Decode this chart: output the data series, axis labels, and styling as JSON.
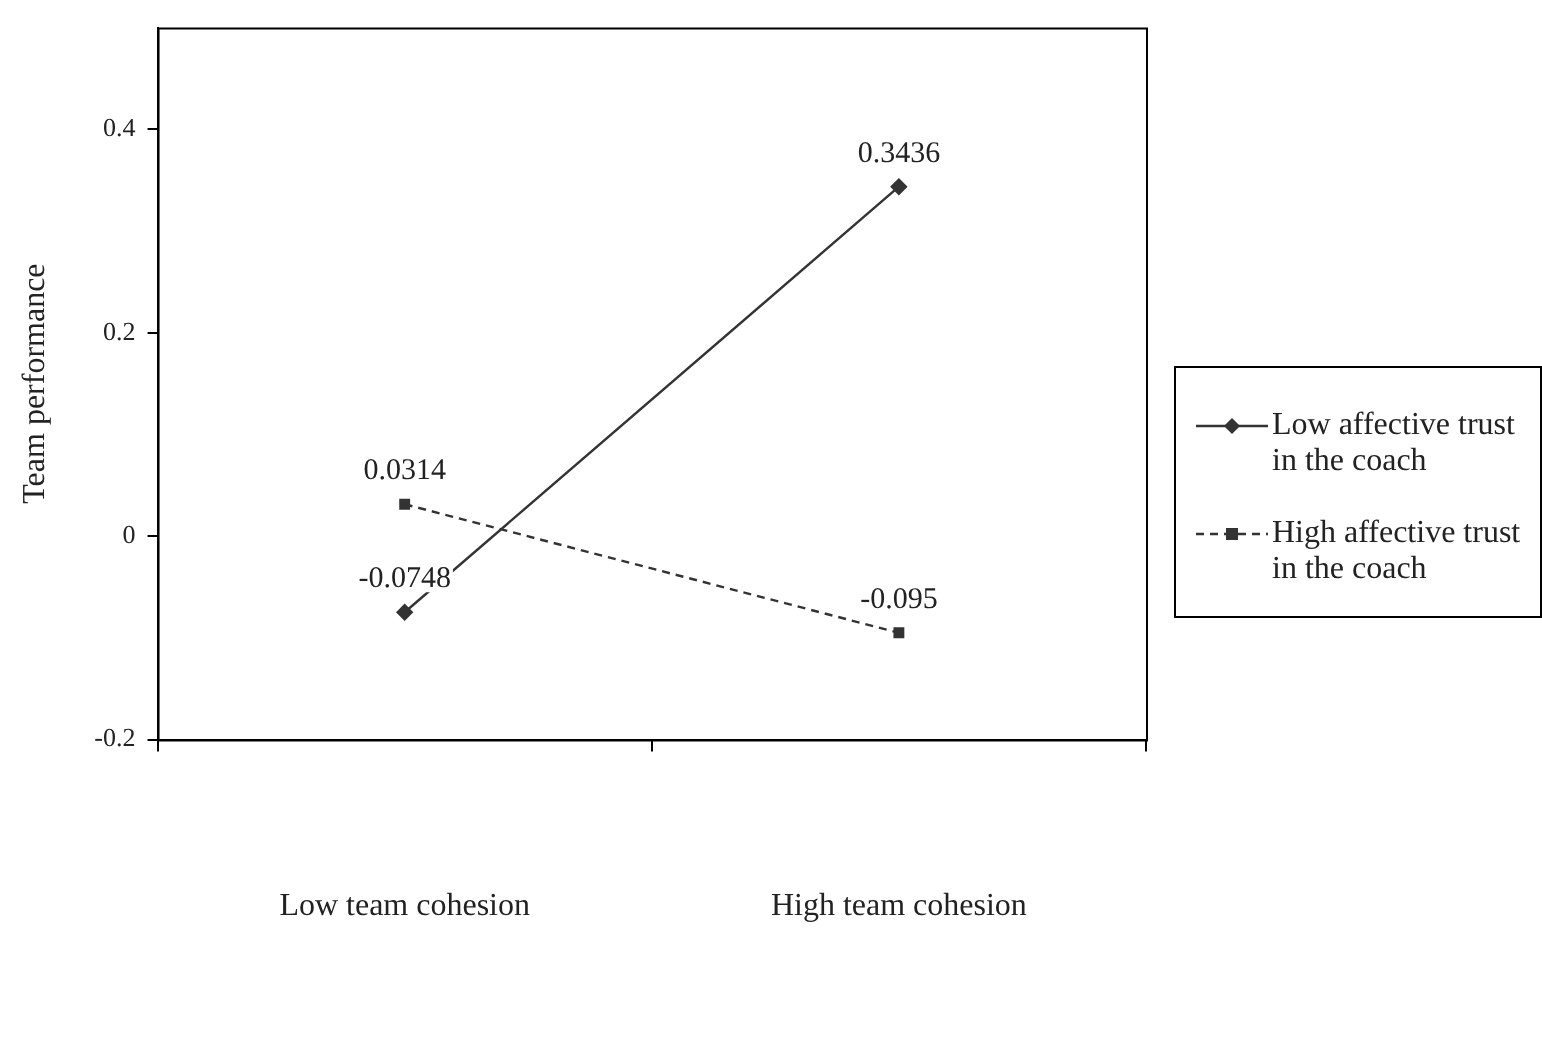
{
  "chart_data": {
    "type": "line",
    "ylabel": "Team performance",
    "categories": [
      "Low team cohesion",
      "High team cohesion"
    ],
    "series": [
      {
        "name": "Low affective trust in the coach",
        "color": "#333333",
        "values": [
          -0.0748,
          0.3436
        ],
        "marker": "diamond",
        "line_style": "solid"
      },
      {
        "name": "High affective trust in the coach",
        "color": "#333333",
        "values": [
          0.0314,
          -0.095
        ],
        "marker": "square",
        "line_style": "dashed"
      }
    ],
    "ylim": [
      -0.2,
      0.5
    ],
    "yticks": [
      -0.2,
      0,
      0.2,
      0.4
    ],
    "grid": false,
    "legend": "right",
    "data_labels": true
  }
}
